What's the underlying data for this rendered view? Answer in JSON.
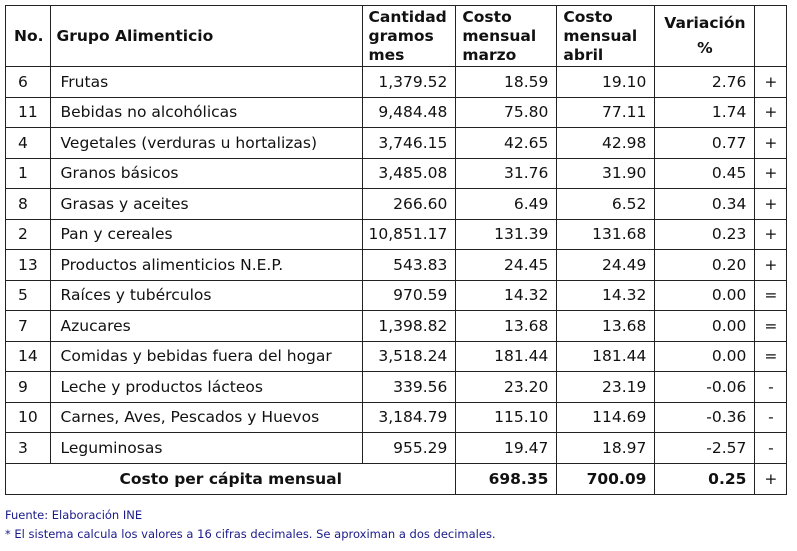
{
  "header": {
    "no": "No.",
    "group": "Grupo Alimenticio",
    "qty": "Cantidad gramos mes",
    "cost_march": "Costo mensual marzo",
    "cost_april": "Costo mensual abril",
    "variation_line1": "Variación",
    "variation_line2": "%"
  },
  "rows": [
    {
      "no": "6",
      "name": "Frutas",
      "qty": "1,379.52",
      "march": "18.59",
      "april": "19.10",
      "var": "2.76",
      "sign": "+"
    },
    {
      "no": "11",
      "name": "Bebidas no alcohólicas",
      "qty": "9,484.48",
      "march": "75.80",
      "april": "77.11",
      "var": "1.74",
      "sign": "+"
    },
    {
      "no": "4",
      "name": "Vegetales (verduras u hortalizas)",
      "qty": "3,746.15",
      "march": "42.65",
      "april": "42.98",
      "var": "0.77",
      "sign": "+"
    },
    {
      "no": "1",
      "name": "Granos básicos",
      "qty": "3,485.08",
      "march": "31.76",
      "april": "31.90",
      "var": "0.45",
      "sign": "+"
    },
    {
      "no": "8",
      "name": "Grasas y aceites",
      "qty": "266.60",
      "march": "6.49",
      "april": "6.52",
      "var": "0.34",
      "sign": "+"
    },
    {
      "no": "2",
      "name": "Pan y cereales",
      "qty": "10,851.17",
      "march": "131.39",
      "april": "131.68",
      "var": "0.23",
      "sign": "+"
    },
    {
      "no": "13",
      "name": "Productos alimenticios N.E.P.",
      "qty": "543.83",
      "march": "24.45",
      "april": "24.49",
      "var": "0.20",
      "sign": "+"
    },
    {
      "no": "5",
      "name": "Raíces y tubérculos",
      "qty": "970.59",
      "march": "14.32",
      "april": "14.32",
      "var": "0.00",
      "sign": "="
    },
    {
      "no": "7",
      "name": "Azucares",
      "qty": "1,398.82",
      "march": "13.68",
      "april": "13.68",
      "var": "0.00",
      "sign": "="
    },
    {
      "no": "14",
      "name": "Comidas y bebidas fuera del hogar",
      "qty": "3,518.24",
      "march": "181.44",
      "april": "181.44",
      "var": "0.00",
      "sign": "="
    },
    {
      "no": "9",
      "name": "Leche y productos lácteos",
      "qty": "339.56",
      "march": "23.20",
      "april": "23.19",
      "var": "-0.06",
      "sign": "-"
    },
    {
      "no": "10",
      "name": "Carnes, Aves, Pescados y Huevos",
      "qty": "3,184.79",
      "march": "115.10",
      "april": "114.69",
      "var": "-0.36",
      "sign": "-"
    },
    {
      "no": "3",
      "name": "Leguminosas",
      "qty": "955.29",
      "march": "19.47",
      "april": "18.97",
      "var": "-2.57",
      "sign": "-"
    }
  ],
  "total": {
    "label": "Costo per cápita mensual",
    "march": "698.35",
    "april": "700.09",
    "var": "0.25",
    "sign": "+"
  },
  "notes": {
    "source": "Fuente: Elaboración INE",
    "footnote": "* El sistema calcula los valores a 16 cifras decimales. Se aproximan a dos decimales."
  }
}
